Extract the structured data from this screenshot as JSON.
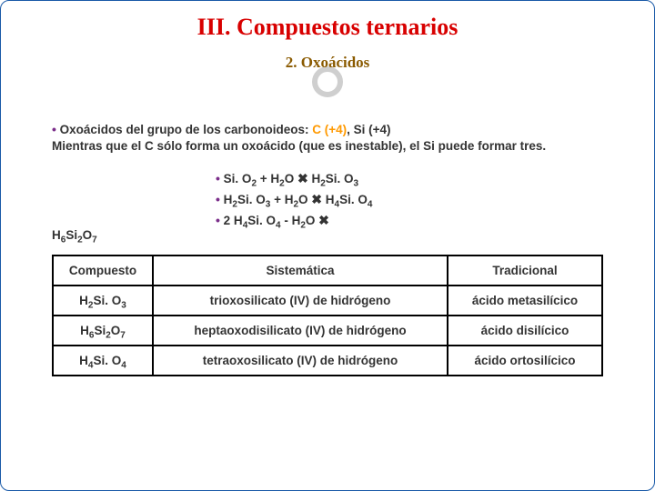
{
  "title": "III. Compuestos ternarios",
  "subtitle": "2. Oxoácidos",
  "intro": {
    "lead": "Oxoácidos del grupo de los carbonoideos:",
    "highlight": " C (+4)",
    "rest1": ", Si (+4)",
    "line2": "Mientras que el C sólo forma un oxoácido (que es inestable), el Si puede formar tres."
  },
  "equations": [
    {
      "pre": "Si. O",
      "s1": "2",
      "mid": " + H",
      "s2": "2",
      "post1": "O ",
      "arrow": "✖",
      "post2": " H",
      "s3": "2",
      "post3": "Si. O",
      "s4": "3"
    },
    {
      "pre": "H",
      "s1": "2",
      "mid": "Si. O",
      "s2": "3",
      "post1": " + H",
      "s3": "2",
      "post2": "O ",
      "arrow": "✖",
      "post3": " H",
      "s4": "4",
      "post4": "Si. O",
      "s5": "4"
    },
    {
      "pre": "2 H",
      "s1": "4",
      "mid": "Si. O",
      "s2": "4",
      "post1": " - H",
      "s3": "2",
      "post2": "O ",
      "arrow": "✖",
      "linebreak": true,
      "post3": "H",
      "s4": "6",
      "post4": "Si",
      "s5": "2",
      "post5": "O",
      "s6": "7"
    }
  ],
  "table": {
    "headers": {
      "c": "Compuesto",
      "s": "Sistemática",
      "t": "Tradicional"
    },
    "rows": [
      {
        "c": {
          "a": "H",
          "s1": "2",
          "b": "Si. O",
          "s2": "3"
        },
        "s": "trioxosilicato (IV) de hidrógeno",
        "t": "ácido metasilícico"
      },
      {
        "c": {
          "a": "H",
          "s1": "6",
          "b": "Si",
          "s2": "2",
          "c": "O",
          "s3": "7"
        },
        "s": "heptaoxodisilicato (IV) de hidrógeno",
        "t": "ácido disilícico"
      },
      {
        "c": {
          "a": "H",
          "s1": "4",
          "b": "Si. O",
          "s2": "4"
        },
        "s": "tetraoxosilicato (IV) de hidrógeno",
        "t": "ácido ortosilícico"
      }
    ]
  }
}
